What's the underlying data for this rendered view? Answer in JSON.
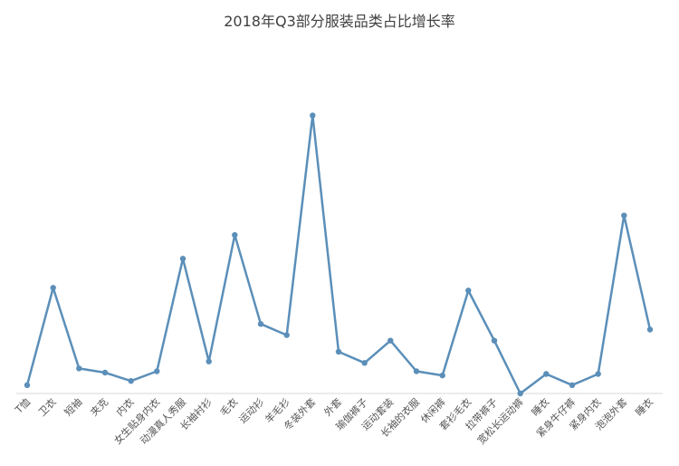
{
  "chart_data": {
    "type": "line",
    "title": "2018年Q3部分服装品类占比增长率",
    "xlabel": "",
    "ylabel": "",
    "grid": false,
    "legend": "none",
    "y_axis_visible": false,
    "categories": [
      "T恤",
      "卫衣",
      "短袖",
      "夹克",
      "内衣",
      "女生贴身内衣",
      "动漫真人秀服",
      "长袖衬衫",
      "毛衣",
      "运动衫",
      "羊毛衫",
      "冬装外套",
      "外套",
      "瑜伽裤子",
      "运动套装",
      "长袖的衣服",
      "休闲裤",
      "套衫毛衣",
      "拉带裤子",
      "宽松长运动裤",
      "睡衣",
      "紧身牛仔裤",
      "紧身内衣",
      "泡泡外套",
      "睡衣"
    ],
    "series": [
      {
        "values": [
          0.03,
          0.38,
          0.09,
          0.075,
          0.045,
          0.08,
          0.485,
          0.115,
          0.57,
          0.25,
          0.21,
          1.0,
          0.15,
          0.11,
          0.19,
          0.08,
          0.065,
          0.37,
          0.19,
          0.0,
          0.07,
          0.03,
          0.07,
          0.64,
          0.23
        ]
      }
    ],
    "ylim": [
      0,
      1.05
    ],
    "colors": {
      "line": "#5b8fb9",
      "axis": "#d9d9d9"
    }
  }
}
